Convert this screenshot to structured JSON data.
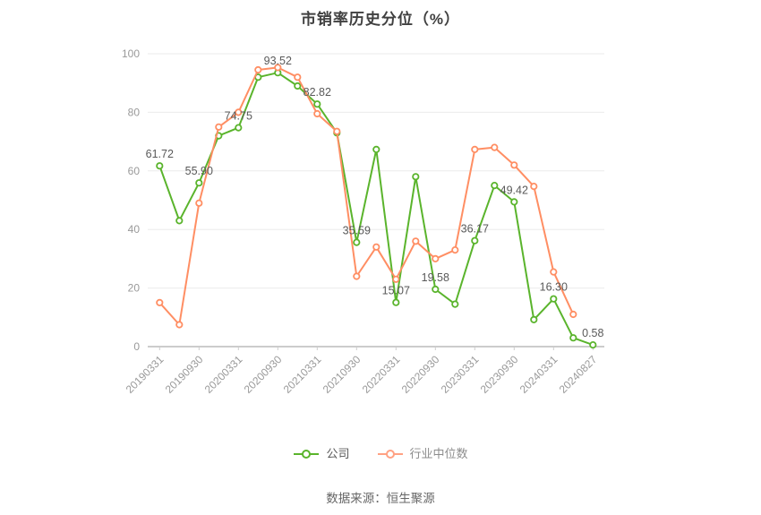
{
  "title": "市销率历史分位（%）",
  "source": "数据来源：恒生聚源",
  "colors": {
    "company": "#5ab42c",
    "industry": "#ff8e63",
    "grid": "#ebebeb",
    "axis": "#999999",
    "tick_label": "#999999",
    "data_label": "#595959",
    "title": "#404040",
    "marker_fill": "#ffffff"
  },
  "legend": {
    "items": [
      {
        "label": "公司",
        "color": "#5ab42c",
        "text_color": "#595959"
      },
      {
        "label": "行业中位数",
        "color": "#ffa183",
        "text_color": "#8c8c8c"
      }
    ]
  },
  "chart_data": {
    "type": "line",
    "title": "市销率历史分位（%）",
    "xlabel": "",
    "ylabel": "",
    "ylim": [
      0,
      100
    ],
    "yticks": [
      0,
      20,
      40,
      60,
      80,
      100
    ],
    "grid": true,
    "legend_position": "bottom",
    "x_ticks": [
      "20190331",
      "20190930",
      "20200331",
      "20200930",
      "20210331",
      "20210930",
      "20220331",
      "20220930",
      "20230331",
      "20230930",
      "20240331",
      "20240827"
    ],
    "points_per_tick": 2,
    "series": [
      {
        "name": "公司",
        "color": "#5ab42c",
        "values": [
          61.72,
          43,
          55.9,
          72,
          74.75,
          92,
          93.52,
          89,
          82.82,
          73,
          35.59,
          67.3,
          15.07,
          58,
          19.58,
          14.5,
          36.17,
          55,
          49.42,
          9.2,
          16.3,
          3,
          0.58
        ],
        "point_labels": [
          "61.72",
          null,
          "55.90",
          null,
          "74.75",
          null,
          "93.52",
          null,
          "82.82",
          null,
          "35.59",
          null,
          "15.07",
          null,
          "19.58",
          null,
          "36.17",
          null,
          "49.42",
          null,
          "16.30",
          null,
          "0.58"
        ]
      },
      {
        "name": "行业中位数",
        "color": "#ff8e63",
        "values": [
          15,
          7.5,
          49,
          75,
          80,
          94.5,
          95.3,
          92,
          79.5,
          73.5,
          24,
          34,
          23,
          36,
          30,
          33,
          67.3,
          68,
          62,
          54.7,
          25.5,
          11,
          null
        ]
      }
    ]
  }
}
